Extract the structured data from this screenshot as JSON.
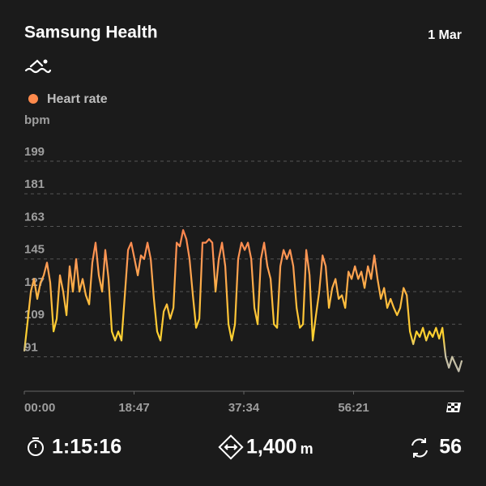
{
  "header": {
    "title": "Samsung Health",
    "date": "1 Mar"
  },
  "chart_data": {
    "type": "line",
    "ylabel": "bpm",
    "x": [
      0,
      33,
      67,
      100,
      133,
      166,
      200,
      233,
      266,
      300,
      333,
      366,
      399,
      433,
      466,
      499,
      532,
      566,
      599,
      632,
      666,
      699,
      732,
      765,
      799,
      832,
      865,
      899,
      932,
      965,
      998,
      1032,
      1065,
      1098,
      1132,
      1165,
      1198,
      1231,
      1265,
      1298,
      1331,
      1364,
      1398,
      1431,
      1464,
      1498,
      1531,
      1564,
      1597,
      1631,
      1664,
      1697,
      1731,
      1764,
      1797,
      1830,
      1864,
      1897,
      1930,
      1964,
      1997,
      2030,
      2063,
      2097,
      2130,
      2163,
      2196,
      2230,
      2263,
      2296,
      2330,
      2363,
      2396,
      2429,
      2463,
      2496,
      2529,
      2563,
      2596,
      2629,
      2662,
      2696,
      2729,
      2762,
      2796,
      2829,
      2862,
      2895,
      2929,
      2962,
      2995,
      3028,
      3062,
      3095,
      3128,
      3162,
      3195,
      3228,
      3261,
      3295,
      3328,
      3361,
      3395,
      3428,
      3461,
      3494,
      3528,
      3561,
      3594,
      3627,
      3661,
      3694,
      3727,
      3761,
      3794,
      3827,
      3860,
      3894,
      3927,
      3960,
      3994,
      4027,
      4060,
      4093,
      4127,
      4160,
      4193,
      4227,
      4260,
      4293,
      4326,
      4360,
      4393,
      4426,
      4460,
      4493
    ],
    "series": [
      {
        "name": "Heart rate",
        "color": "#ff8a4c",
        "values": [
          94,
          110,
          127,
          134,
          123,
          132,
          136,
          143,
          132,
          105,
          112,
          136,
          127,
          114,
          141,
          127,
          145,
          127,
          134,
          125,
          120,
          143,
          154,
          136,
          127,
          150,
          134,
          105,
          100,
          105,
          100,
          125,
          150,
          154,
          145,
          136,
          147,
          145,
          154,
          145,
          123,
          105,
          100,
          116,
          120,
          112,
          118,
          154,
          152,
          161,
          156,
          145,
          125,
          107,
          112,
          154,
          154,
          156,
          154,
          127,
          145,
          154,
          141,
          109,
          100,
          109,
          145,
          154,
          150,
          154,
          145,
          118,
          109,
          145,
          154,
          141,
          134,
          109,
          107,
          141,
          150,
          145,
          150,
          141,
          118,
          107,
          109,
          150,
          136,
          100,
          114,
          127,
          147,
          141,
          118,
          129,
          134,
          123,
          125,
          118,
          138,
          134,
          141,
          134,
          138,
          129,
          141,
          134,
          147,
          134,
          123,
          129,
          118,
          123,
          118,
          114,
          118,
          129,
          125,
          105,
          98,
          105,
          102,
          107,
          100,
          105,
          102,
          107,
          101,
          107,
          91,
          85,
          91,
          87,
          83,
          89
        ]
      }
    ],
    "xlim": [
      0,
      4516
    ],
    "xticks": [
      {
        "value": 0,
        "label": "00:00"
      },
      {
        "value": 1127,
        "label": "18:47"
      },
      {
        "value": 2254,
        "label": "37:34"
      },
      {
        "value": 3381,
        "label": "56:21"
      }
    ],
    "ylim": [
      72,
      199
    ],
    "yticks": [
      91,
      109,
      127,
      145,
      163,
      181,
      199
    ],
    "grid": true
  },
  "stats": {
    "duration": "1:15:16",
    "distance": "1,400",
    "distance_unit": "m",
    "laps": "56"
  }
}
